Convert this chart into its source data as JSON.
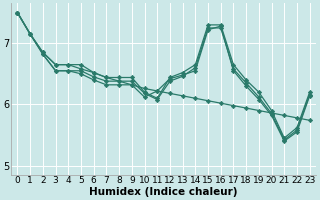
{
  "xlabel": "Humidex (Indice chaleur)",
  "background_color": "#cce8e8",
  "grid_color": "#ffffff",
  "line_color": "#2a7a6a",
  "xlim": [
    -0.5,
    23.5
  ],
  "ylim": [
    4.85,
    7.65
  ],
  "xticks": [
    0,
    1,
    2,
    3,
    4,
    5,
    6,
    7,
    8,
    9,
    10,
    11,
    12,
    13,
    14,
    15,
    16,
    17,
    18,
    19,
    20,
    21,
    22,
    23
  ],
  "yticks": [
    5,
    6,
    7
  ],
  "series": [
    [
      7.5,
      7.15,
      6.85,
      6.65,
      6.65,
      6.58,
      6.52,
      6.44,
      6.38,
      6.32,
      6.26,
      6.22,
      6.18,
      6.14,
      6.1,
      6.06,
      6.02,
      5.98,
      5.94,
      5.9,
      5.86,
      5.82,
      5.78,
      5.74
    ],
    [
      7.5,
      7.15,
      6.85,
      6.65,
      6.65,
      6.65,
      6.52,
      6.44,
      6.44,
      6.44,
      6.2,
      6.1,
      6.44,
      6.52,
      6.65,
      7.3,
      7.3,
      6.65,
      6.4,
      6.2,
      5.9,
      5.45,
      5.62,
      6.2
    ],
    [
      7.5,
      7.15,
      6.82,
      6.55,
      6.55,
      6.55,
      6.45,
      6.38,
      6.38,
      6.38,
      6.18,
      6.08,
      6.38,
      6.46,
      6.6,
      7.25,
      7.25,
      6.58,
      6.35,
      6.12,
      5.85,
      5.42,
      5.58,
      6.16
    ],
    [
      7.5,
      7.15,
      6.82,
      6.55,
      6.55,
      6.5,
      6.4,
      6.32,
      6.32,
      6.32,
      6.12,
      6.22,
      6.42,
      6.48,
      6.55,
      7.22,
      7.28,
      6.55,
      6.3,
      6.08,
      5.82,
      5.4,
      5.55,
      6.14
    ]
  ],
  "marker": "D",
  "markersize": 2.2,
  "linewidth": 0.9,
  "xlabel_fontsize": 7.5,
  "tick_fontsize": 6.5
}
